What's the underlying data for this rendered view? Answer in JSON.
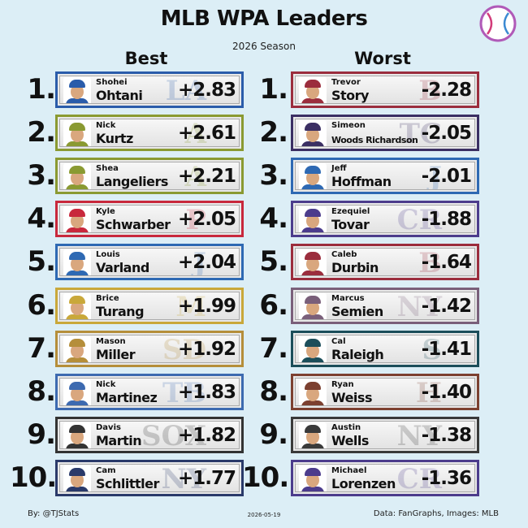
{
  "header": {
    "title": "MLB WPA Leaders",
    "subtitle": "2026 Season",
    "best_label": "Best",
    "worst_label": "Worst"
  },
  "footer": {
    "credit": "By: @TJStats",
    "date": "2026-05-19",
    "source": "Data: FanGraphs, Images: MLB"
  },
  "chart_data": {
    "type": "table",
    "title": "MLB WPA Leaders",
    "subtitle": "2026 Season",
    "best": [
      {
        "rank": "1.",
        "first": "Shohei",
        "last": "Ohtani",
        "team": "LAD",
        "wpa": "+2.83",
        "value": 2.83,
        "color": "#2a5caa",
        "logo": "LA"
      },
      {
        "rank": "2.",
        "first": "Nick",
        "last": "Kurtz",
        "team": "ATH",
        "wpa": "+2.61",
        "value": 2.61,
        "color": "#8a9a32",
        "logo": "A"
      },
      {
        "rank": "3.",
        "first": "Shea",
        "last": "Langeliers",
        "team": "ATH",
        "wpa": "+2.21",
        "value": 2.21,
        "color": "#8a9a32",
        "logo": "A"
      },
      {
        "rank": "4.",
        "first": "Kyle",
        "last": "Schwarber",
        "team": "PHI",
        "wpa": "+2.05",
        "value": 2.05,
        "color": "#c8283c",
        "logo": "P"
      },
      {
        "rank": "5.",
        "first": "Louis",
        "last": "Varland",
        "team": "TOR",
        "wpa": "+2.04",
        "value": 2.04,
        "color": "#2e69b3",
        "logo": "J"
      },
      {
        "rank": "6.",
        "first": "Brice",
        "last": "Turang",
        "team": "MIL",
        "wpa": "+1.99",
        "value": 1.99,
        "color": "#c9a83a",
        "logo": "M"
      },
      {
        "rank": "7.",
        "first": "Mason",
        "last": "Miller",
        "team": "SD",
        "wpa": "+1.92",
        "value": 1.92,
        "color": "#b58e3a",
        "logo": "SD"
      },
      {
        "rank": "8.",
        "first": "Nick",
        "last": "Martinez",
        "team": "TB",
        "wpa": "+1.83",
        "value": 1.83,
        "color": "#3d6ab0",
        "logo": "TB"
      },
      {
        "rank": "9.",
        "first": "Davis",
        "last": "Martin",
        "team": "CWS",
        "wpa": "+1.82",
        "value": 1.82,
        "color": "#333333",
        "logo": "SOX"
      },
      {
        "rank": "10.",
        "first": "Cam",
        "last": "Schlittler",
        "team": "NYY",
        "wpa": "+1.77",
        "value": 1.77,
        "color": "#2a3a6a",
        "logo": "NY"
      }
    ],
    "worst": [
      {
        "rank": "1.",
        "first": "Trevor",
        "last": "Story",
        "team": "BOS",
        "wpa": "-2.28",
        "value": -2.28,
        "color": "#9b2d3d",
        "logo": "B"
      },
      {
        "rank": "2.",
        "first": "Simeon",
        "last": "Woods Richardson",
        "team": "MIN",
        "wpa": "-2.05",
        "value": -2.05,
        "color": "#3b2f63",
        "logo": "TC"
      },
      {
        "rank": "3.",
        "first": "Jeff",
        "last": "Hoffman",
        "team": "TOR",
        "wpa": "-2.01",
        "value": -2.01,
        "color": "#2e69b3",
        "logo": "J"
      },
      {
        "rank": "4.",
        "first": "Ezequiel",
        "last": "Tovar",
        "team": "COL",
        "wpa": "-1.88",
        "value": -1.88,
        "color": "#4c3c8c",
        "logo": "CR"
      },
      {
        "rank": "5.",
        "first": "Caleb",
        "last": "Durbin",
        "team": "BOS",
        "wpa": "-1.64",
        "value": -1.64,
        "color": "#9b2d3d",
        "logo": "B"
      },
      {
        "rank": "6.",
        "first": "Marcus",
        "last": "Semien",
        "team": "NYM",
        "wpa": "-1.42",
        "value": -1.42,
        "color": "#7a5f7a",
        "logo": "NY"
      },
      {
        "rank": "7.",
        "first": "Cal",
        "last": "Raleigh",
        "team": "SEA",
        "wpa": "-1.41",
        "value": -1.41,
        "color": "#1c4e5a",
        "logo": "S"
      },
      {
        "rank": "8.",
        "first": "Ryan",
        "last": "Weiss",
        "team": "HOU",
        "wpa": "-1.40",
        "value": -1.4,
        "color": "#7c4030",
        "logo": "H"
      },
      {
        "rank": "9.",
        "first": "Austin",
        "last": "Wells",
        "team": "NYY",
        "wpa": "-1.38",
        "value": -1.38,
        "color": "#3a3a3a",
        "logo": "NY"
      },
      {
        "rank": "10.",
        "first": "Michael",
        "last": "Lorenzen",
        "team": "COL",
        "wpa": "-1.36",
        "value": -1.36,
        "color": "#4c3c8c",
        "logo": "CR"
      }
    ]
  }
}
